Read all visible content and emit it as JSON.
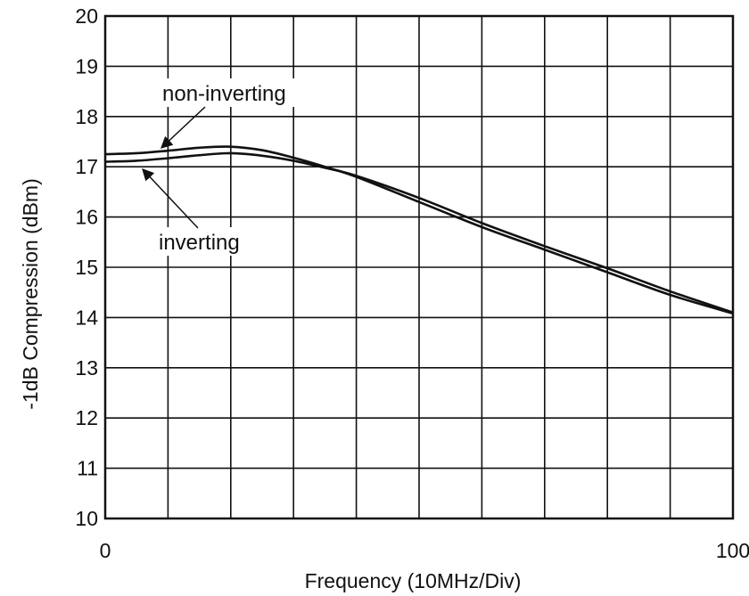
{
  "chart_data": {
    "type": "line",
    "title": "",
    "xlabel": "Frequency (10MHz/Div)",
    "ylabel": "-1dB Compression (dBm)",
    "xlim": [
      0,
      100
    ],
    "ylim": [
      10,
      20
    ],
    "x_tick_labels": [
      "0",
      "100"
    ],
    "y_ticks": [
      10,
      11,
      12,
      13,
      14,
      15,
      16,
      17,
      18,
      19,
      20
    ],
    "grid": true,
    "x_divisions": 10,
    "series": [
      {
        "name": "non-inverting",
        "x": [
          0,
          5,
          10,
          15,
          20,
          25,
          30,
          35,
          40,
          50,
          60,
          70,
          80,
          90,
          100
        ],
        "y": [
          17.25,
          17.27,
          17.32,
          17.38,
          17.4,
          17.33,
          17.18,
          17.0,
          16.8,
          16.3,
          15.8,
          15.35,
          14.9,
          14.45,
          14.08
        ]
      },
      {
        "name": "inverting",
        "x": [
          0,
          5,
          10,
          15,
          20,
          25,
          30,
          35,
          40,
          50,
          60,
          70,
          80,
          90,
          100
        ],
        "y": [
          17.1,
          17.12,
          17.17,
          17.23,
          17.27,
          17.22,
          17.12,
          16.98,
          16.82,
          16.38,
          15.88,
          15.42,
          14.98,
          14.52,
          14.1
        ]
      }
    ],
    "annotations": [
      {
        "text": "non-inverting",
        "series": "non-inverting"
      },
      {
        "text": "inverting",
        "series": "inverting"
      }
    ],
    "colors": {
      "line": "#111111",
      "grid": "#111111",
      "background": "#ffffff"
    }
  }
}
